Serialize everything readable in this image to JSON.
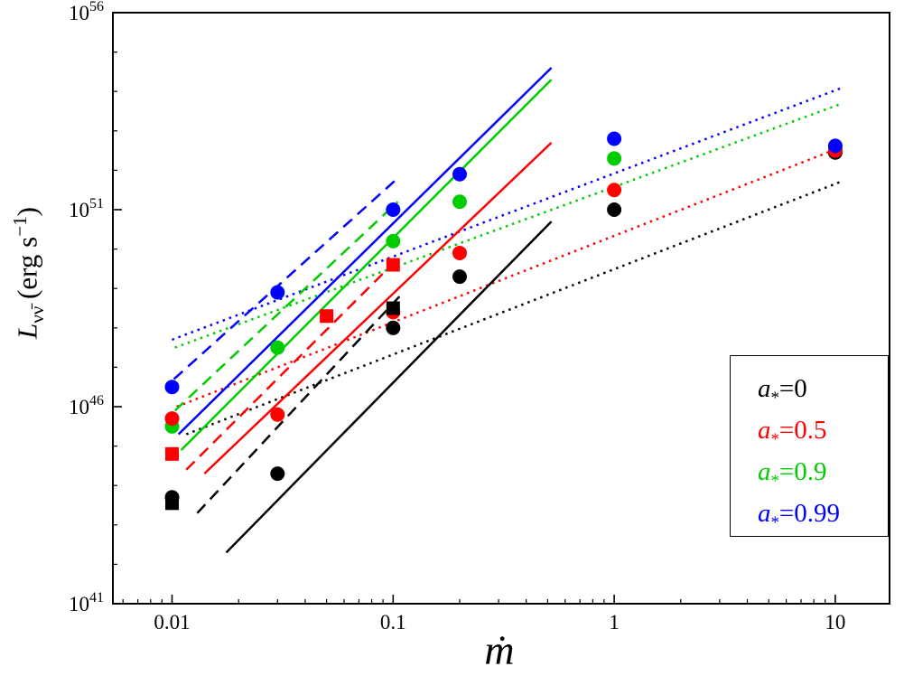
{
  "chart_data": {
    "type": "scatter",
    "title": "",
    "xlabel": "ṁ",
    "ylabel_parts": {
      "var": "L",
      "sub": "νν̄",
      "unit_pre": " (erg s",
      "unit_sup": "−1",
      "unit_post": ")"
    },
    "axes": {
      "x_scale": "log",
      "y_scale": "log",
      "xlim": [
        0.0054,
        17.6
      ],
      "ylim_exp": [
        41,
        56
      ],
      "x_ticks": [
        {
          "label": "0.01",
          "value": 0.01
        },
        {
          "label": "0.1",
          "value": 0.1
        },
        {
          "label": "1",
          "value": 1
        },
        {
          "label": "10",
          "value": 10
        }
      ],
      "y_ticks": [
        {
          "base": "10",
          "exp": "41",
          "value": 41
        },
        {
          "base": "10",
          "exp": "46",
          "value": 46
        },
        {
          "base": "10",
          "exp": "51",
          "value": 51
        },
        {
          "base": "10",
          "exp": "56",
          "value": 56
        }
      ],
      "grid": false
    },
    "colors": {
      "a0": "#000000",
      "a05": "#ff0000",
      "a09": "#00cc00",
      "a099": "#0000ff"
    },
    "legend": [
      {
        "var": "a",
        "sub": "*",
        "val": "=0",
        "color": "#000000"
      },
      {
        "var": "a",
        "sub": "*",
        "val": "=0.5",
        "color": "#ff0000"
      },
      {
        "var": "a",
        "sub": "*",
        "val": "=0.9",
        "color": "#00cc00"
      },
      {
        "var": "a",
        "sub": "*",
        "val": "=0.99",
        "color": "#0000ff"
      }
    ],
    "series": [
      {
        "name": "a0-circles",
        "color": "#000000",
        "marker": "circle",
        "points": [
          [
            0.01,
            43.7
          ],
          [
            0.03,
            44.3
          ],
          [
            0.1,
            48.0
          ],
          [
            0.2,
            49.3
          ],
          [
            1,
            51.0
          ],
          [
            10,
            52.45
          ]
        ]
      },
      {
        "name": "a09-circles",
        "color": "#00cc00",
        "marker": "circle",
        "points": [
          [
            0.01,
            45.5
          ],
          [
            0.03,
            47.5
          ],
          [
            0.1,
            50.2
          ],
          [
            0.2,
            51.2
          ],
          [
            1,
            52.3
          ],
          [
            10,
            52.55
          ]
        ]
      },
      {
        "name": "a05-circles",
        "color": "#ff0000",
        "marker": "circle",
        "points": [
          [
            0.01,
            45.7
          ],
          [
            0.03,
            45.8
          ],
          [
            0.1,
            48.4
          ],
          [
            0.2,
            49.9
          ],
          [
            1,
            51.5
          ],
          [
            10,
            52.5
          ]
        ]
      },
      {
        "name": "a099-circles",
        "color": "#0000ff",
        "marker": "circle",
        "points": [
          [
            0.01,
            46.5
          ],
          [
            0.03,
            48.9
          ],
          [
            0.1,
            51.0
          ],
          [
            0.2,
            51.9
          ],
          [
            1,
            52.8
          ],
          [
            10,
            52.62
          ]
        ]
      },
      {
        "name": "a0-squares",
        "color": "#000000",
        "marker": "square",
        "points": [
          [
            0.01,
            43.55
          ],
          [
            0.1,
            48.5
          ]
        ]
      },
      {
        "name": "a05-squares",
        "color": "#ff0000",
        "marker": "square",
        "points": [
          [
            0.01,
            44.8
          ],
          [
            0.05,
            48.3
          ],
          [
            0.1,
            49.6
          ]
        ]
      }
    ],
    "lines": [
      {
        "group": "a0",
        "style": "dotted",
        "color": "#000000",
        "x": [
          0.0116,
          10.5
        ],
        "logy": [
          45.3,
          51.7
        ]
      },
      {
        "group": "a05",
        "style": "dotted",
        "color": "#ff0000",
        "x": [
          0.0105,
          10.8
        ],
        "logy": [
          46.0,
          52.6
        ]
      },
      {
        "group": "a09",
        "style": "dotted",
        "color": "#00cc00",
        "x": [
          0.0103,
          10.8
        ],
        "logy": [
          47.5,
          53.7
        ]
      },
      {
        "group": "a099",
        "style": "dotted",
        "color": "#0000ff",
        "x": [
          0.01,
          10.8
        ],
        "logy": [
          47.7,
          54.1
        ]
      },
      {
        "group": "a0",
        "style": "dashed",
        "color": "#000000",
        "x": [
          0.013,
          0.107
        ],
        "logy": [
          43.3,
          48.8
        ]
      },
      {
        "group": "a05",
        "style": "dashed",
        "color": "#ff0000",
        "x": [
          0.0116,
          0.107
        ],
        "logy": [
          44.4,
          49.8
        ]
      },
      {
        "group": "a09",
        "style": "dashed",
        "color": "#00cc00",
        "x": [
          0.0103,
          0.105
        ],
        "logy": [
          45.9,
          51.2
        ]
      },
      {
        "group": "a099",
        "style": "dashed",
        "color": "#0000ff",
        "x": [
          0.0102,
          0.105
        ],
        "logy": [
          46.7,
          51.8
        ]
      },
      {
        "group": "a0",
        "style": "solid",
        "color": "#000000",
        "x": [
          0.0176,
          0.52
        ],
        "logy": [
          42.3,
          50.7
        ]
      },
      {
        "group": "a05",
        "style": "solid",
        "color": "#ff0000",
        "x": [
          0.014,
          0.52
        ],
        "logy": [
          44.3,
          52.7
        ]
      },
      {
        "group": "a09",
        "style": "solid",
        "color": "#00cc00",
        "x": [
          0.011,
          0.52
        ],
        "logy": [
          44.9,
          54.3
        ]
      },
      {
        "group": "a099",
        "style": "solid",
        "color": "#0000ff",
        "x": [
          0.0107,
          0.52
        ],
        "logy": [
          45.3,
          54.6
        ]
      }
    ]
  }
}
